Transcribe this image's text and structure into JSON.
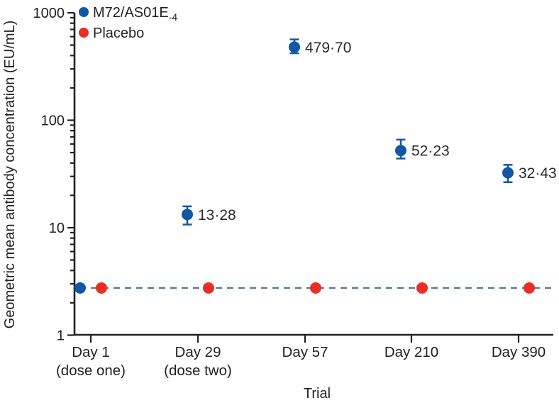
{
  "legend": {
    "items": [
      {
        "name": "M72/AS01E",
        "sub": "-4",
        "color": "#1157a4"
      },
      {
        "name": "Placebo",
        "sub": "",
        "color": "#ea2e24"
      }
    ]
  },
  "chart_data": {
    "type": "scatter",
    "title": "",
    "xlabel": "Trial",
    "ylabel": "Geometric mean antibody concentration (EU/mL)",
    "yscale": "log",
    "ylim": [
      1,
      1000
    ],
    "yticks_major": [
      1,
      10,
      100,
      1000
    ],
    "grid": false,
    "legend_position": "top-left-inside",
    "x_categories": [
      {
        "label": "Day 1",
        "sublabel": "(dose one)"
      },
      {
        "label": "Day 29",
        "sublabel": "(dose two)"
      },
      {
        "label": "Day 57",
        "sublabel": ""
      },
      {
        "label": "Day 210",
        "sublabel": ""
      },
      {
        "label": "Day 390",
        "sublabel": ""
      }
    ],
    "series": [
      {
        "name": "M72/AS01E-4",
        "color": "#1157a4",
        "values": [
          2.75,
          13.28,
          479.7,
          52.23,
          32.43
        ],
        "ci_low": [
          null,
          10.7,
          420,
          44,
          26.5
        ],
        "ci_high": [
          null,
          15.8,
          565,
          66,
          38.5
        ],
        "point_labels": [
          "",
          "13·28",
          "479·70",
          "52·23",
          "32·43"
        ]
      },
      {
        "name": "Placebo",
        "color": "#ea2e24",
        "values": [
          2.75,
          2.75,
          2.75,
          2.75,
          2.75
        ],
        "ci_low": [
          null,
          null,
          null,
          null,
          null
        ],
        "ci_high": [
          null,
          null,
          null,
          null,
          null
        ],
        "point_labels": [
          "",
          "",
          "",
          "",
          ""
        ]
      }
    ],
    "reference_line": {
      "value": 2.75,
      "style": "dashed",
      "color": "#5d7c8c"
    }
  }
}
